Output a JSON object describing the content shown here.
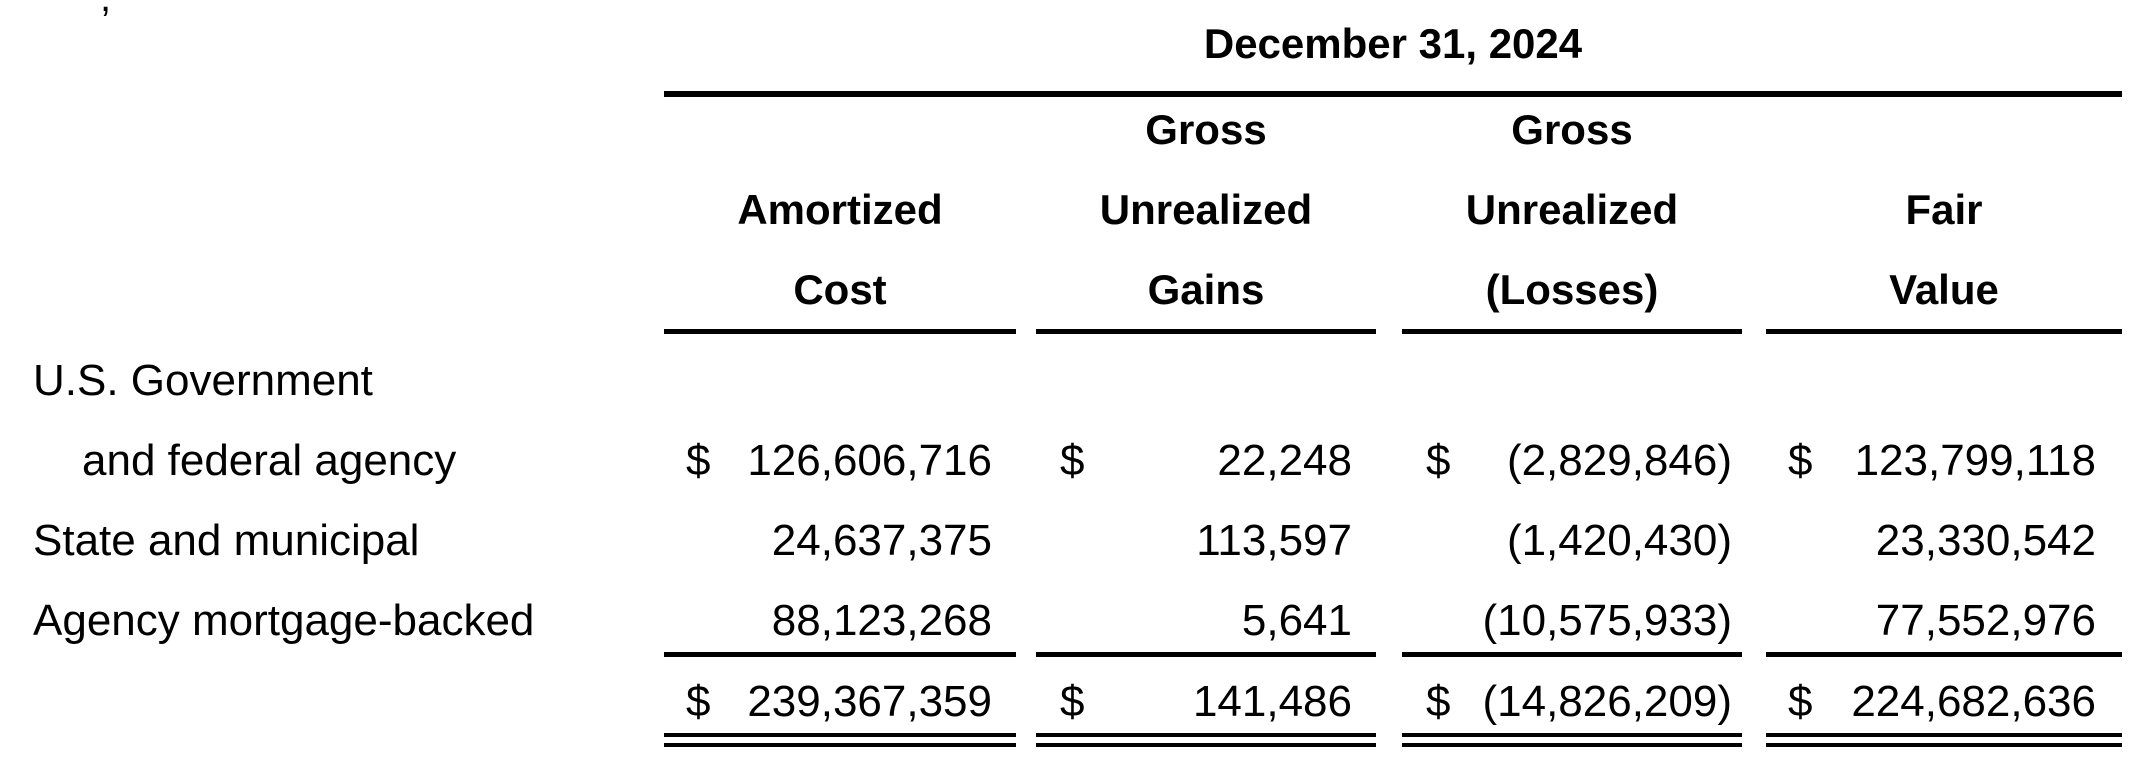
{
  "table": {
    "period": "December 31, 2024",
    "columns": [
      {
        "id": "amortized-cost",
        "header_lines": [
          "Amortized",
          "Cost"
        ]
      },
      {
        "id": "gross-unrealized-gains",
        "header_lines": [
          "Gross",
          "Unrealized",
          "Gains"
        ]
      },
      {
        "id": "gross-unrealized-losses",
        "header_lines": [
          "Gross",
          "Unrealized",
          "(Losses)"
        ]
      },
      {
        "id": "fair-value",
        "header_lines": [
          "Fair",
          "Value"
        ]
      }
    ],
    "currency_symbol": "$",
    "rows": [
      {
        "label_lines": [
          "U.S. Government",
          "and federal agency"
        ],
        "values": [
          "126,606,716",
          "22,248",
          "(2,829,846)",
          "123,799,118"
        ]
      },
      {
        "label_lines": [
          "State and municipal"
        ],
        "values": [
          "24,637,375",
          "113,597",
          "(1,420,430)",
          "23,330,542"
        ]
      },
      {
        "label_lines": [
          "Agency mortgage-backed"
        ],
        "values": [
          "88,123,268",
          "5,641",
          "(10,575,933)",
          "77,552,976"
        ]
      }
    ],
    "total": {
      "values": [
        "239,367,359",
        "141,486",
        "(14,826,209)",
        "224,682,636"
      ]
    }
  }
}
